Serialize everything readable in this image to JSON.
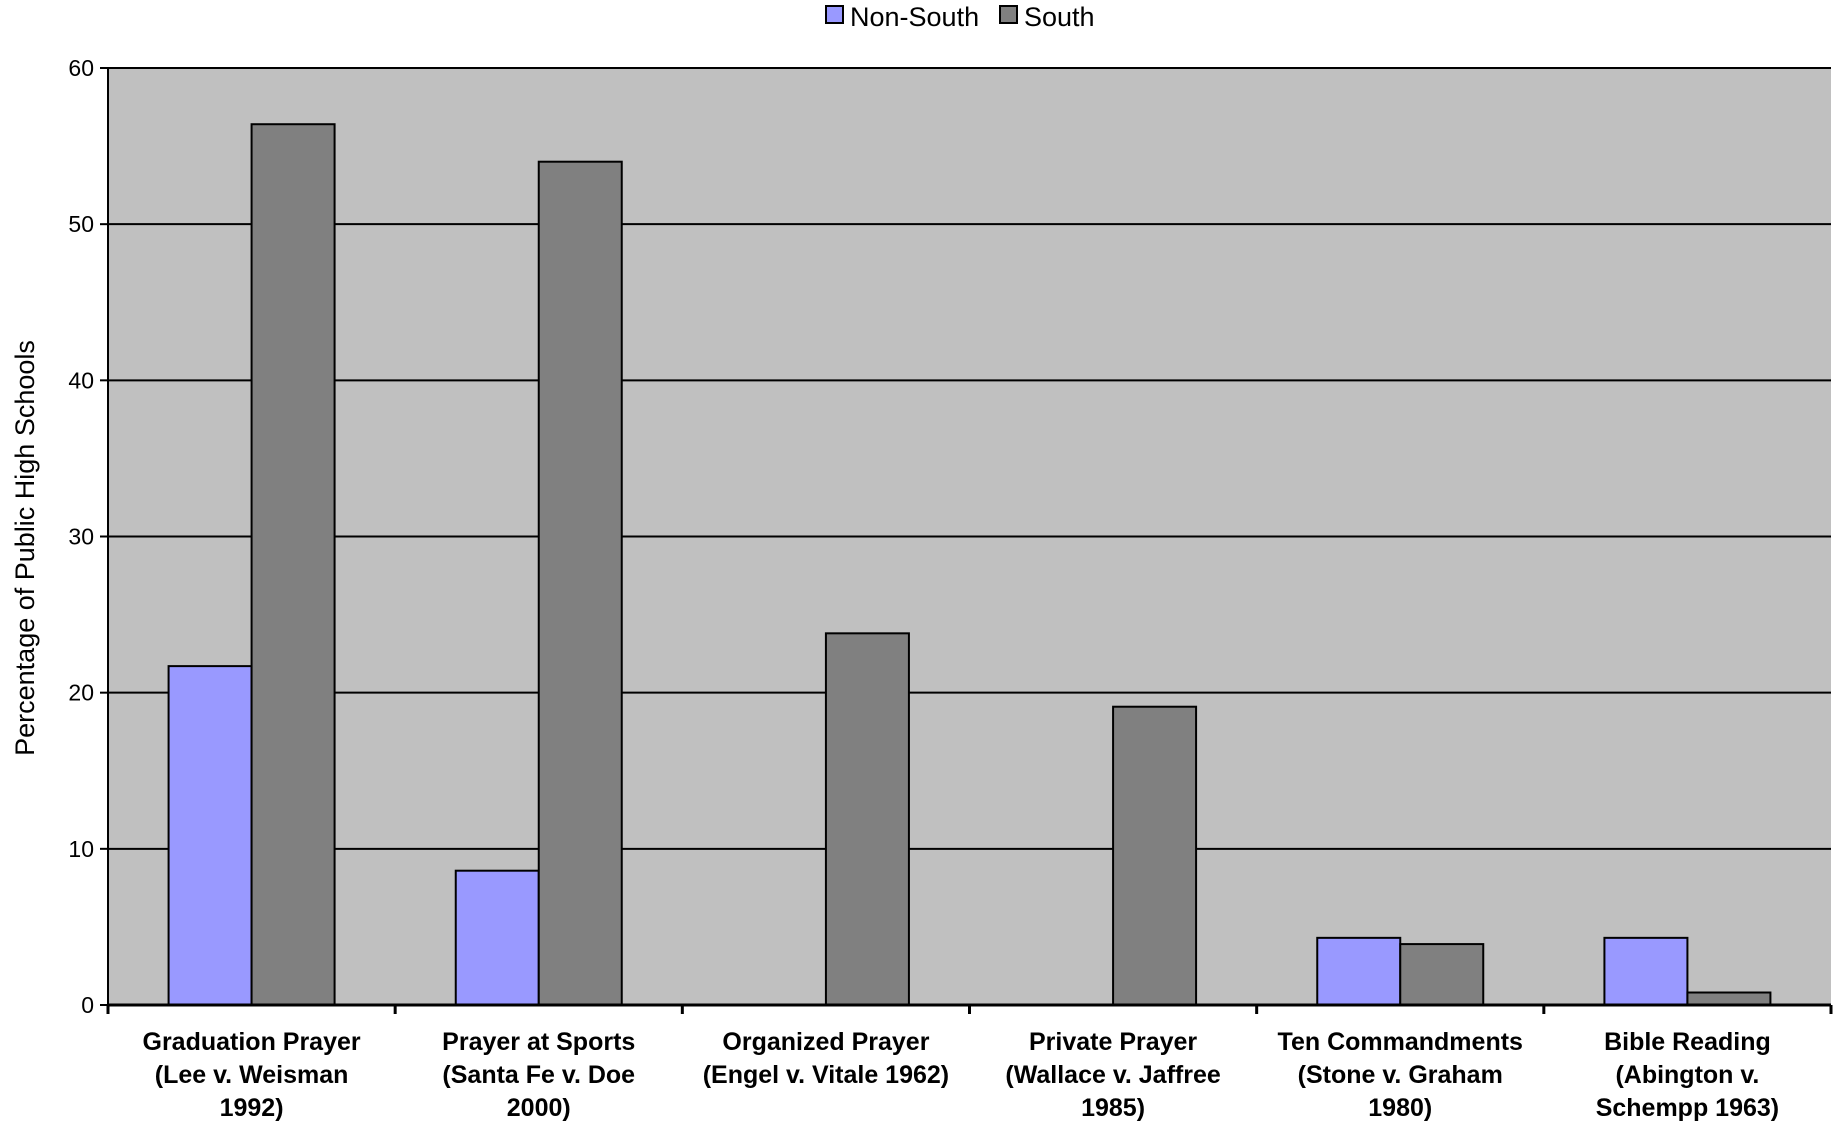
{
  "chart_data": {
    "type": "bar",
    "ylabel": "Percentage of Public High Schools",
    "ylim": [
      0,
      60
    ],
    "yticks": [
      0,
      10,
      20,
      30,
      40,
      50,
      60
    ],
    "grid": true,
    "legend_position": "top-center",
    "categories": [
      [
        "Graduation Prayer",
        "(Lee v. Weisman",
        "1992)"
      ],
      [
        "Prayer at Sports",
        "(Santa Fe v. Doe",
        "2000)"
      ],
      [
        "Organized Prayer",
        "(Engel v. Vitale 1962)"
      ],
      [
        "Private Prayer",
        "(Wallace v. Jaffree",
        "1985)"
      ],
      [
        "Ten Commandments",
        "(Stone v. Graham",
        "1980)"
      ],
      [
        "Bible Reading",
        "(Abington v.",
        "Schempp 1963)"
      ]
    ],
    "series": [
      {
        "name": "Non-South",
        "color": "#9999ff",
        "values": [
          21.7,
          8.6,
          0,
          0,
          4.3,
          4.3
        ]
      },
      {
        "name": "South",
        "color": "#808080",
        "values": [
          56.4,
          54.0,
          23.8,
          19.1,
          3.9,
          0.8
        ]
      }
    ]
  },
  "colors": {
    "plot_background": "#c0c0c0",
    "gridline": "#000000"
  }
}
